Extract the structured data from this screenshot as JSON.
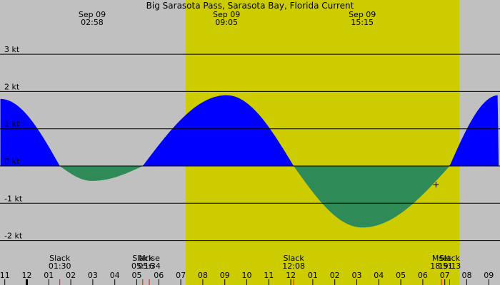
{
  "chart_data": {
    "type": "area",
    "title": "Big Sarasota Pass, Sarasota Bay, Florida Current",
    "y_unit": "kt",
    "ylim": [
      -2.5,
      3.3
    ],
    "y_ticks": [
      {
        "value": 3,
        "label": "3 kt"
      },
      {
        "value": 2,
        "label": "2 kt"
      },
      {
        "value": 1,
        "label": "1 kt"
      },
      {
        "value": 0,
        "label": "0 kt"
      },
      {
        "value": -1,
        "label": "-1 kt"
      },
      {
        "value": -2,
        "label": "-2 kt"
      }
    ],
    "x_range_hours": [
      -1.2,
      21.45
    ],
    "x_ticks": [
      {
        "hour": -1,
        "label": "11"
      },
      {
        "hour": 0,
        "label": "12"
      },
      {
        "hour": 1,
        "label": "01"
      },
      {
        "hour": 2,
        "label": "02"
      },
      {
        "hour": 3,
        "label": "03"
      },
      {
        "hour": 4,
        "label": "04"
      },
      {
        "hour": 5,
        "label": "05"
      },
      {
        "hour": 6,
        "label": "06"
      },
      {
        "hour": 7,
        "label": "07"
      },
      {
        "hour": 8,
        "label": "08"
      },
      {
        "hour": 9,
        "label": "09"
      },
      {
        "hour": 10,
        "label": "10"
      },
      {
        "hour": 11,
        "label": "11"
      },
      {
        "hour": 12,
        "label": "12"
      },
      {
        "hour": 13,
        "label": "01"
      },
      {
        "hour": 14,
        "label": "02"
      },
      {
        "hour": 15,
        "label": "03"
      },
      {
        "hour": 16,
        "label": "04"
      },
      {
        "hour": 17,
        "label": "05"
      },
      {
        "hour": 18,
        "label": "06"
      },
      {
        "hour": 19,
        "label": "07"
      },
      {
        "hour": 20,
        "label": "08"
      },
      {
        "hour": 21,
        "label": "09"
      }
    ],
    "daylight": {
      "start_hour": 7.22,
      "end_hour": 19.67
    },
    "series": [
      {
        "points": [
          {
            "t": -1.2,
            "v": 1.8
          },
          {
            "t": 1.5,
            "v": 0
          },
          {
            "t": 2.97,
            "v": -0.4
          },
          {
            "t": 5.27,
            "v": 0
          },
          {
            "t": 9.08,
            "v": 1.9
          },
          {
            "t": 12.13,
            "v": 0
          },
          {
            "t": 15.25,
            "v": -1.65
          },
          {
            "t": 19.22,
            "v": 0
          },
          {
            "t": 21.45,
            "v": 1.9
          }
        ]
      }
    ],
    "peak_labels": [
      {
        "hour": 2.97,
        "date": "Sep 09",
        "time": "02:58"
      },
      {
        "hour": 9.08,
        "date": "Sep 09",
        "time": "09:05"
      },
      {
        "hour": 15.25,
        "date": "Sep 09",
        "time": "15:15"
      }
    ],
    "events": [
      {
        "hour": 1.5,
        "label": "Slack",
        "time": "01:30"
      },
      {
        "hour": 5.27,
        "label": "Slack",
        "time": "05:16"
      },
      {
        "hour": 5.57,
        "label": "Mrise",
        "time": "05:34"
      },
      {
        "hour": 12.13,
        "label": "Slack",
        "time": "12:08"
      },
      {
        "hour": 18.85,
        "label": "Mset",
        "time": "18:51"
      },
      {
        "hour": 19.22,
        "label": "Slack",
        "time": "19:13"
      }
    ],
    "current_marker": {
      "hour": 18.6,
      "v": -0.5
    },
    "colors": {
      "flood": "#0000ff",
      "ebb": "#2e8b57",
      "night": "#c0c0c0",
      "day": "#cccc00",
      "grid": "#000000",
      "event_tick": "#ff0000"
    }
  }
}
